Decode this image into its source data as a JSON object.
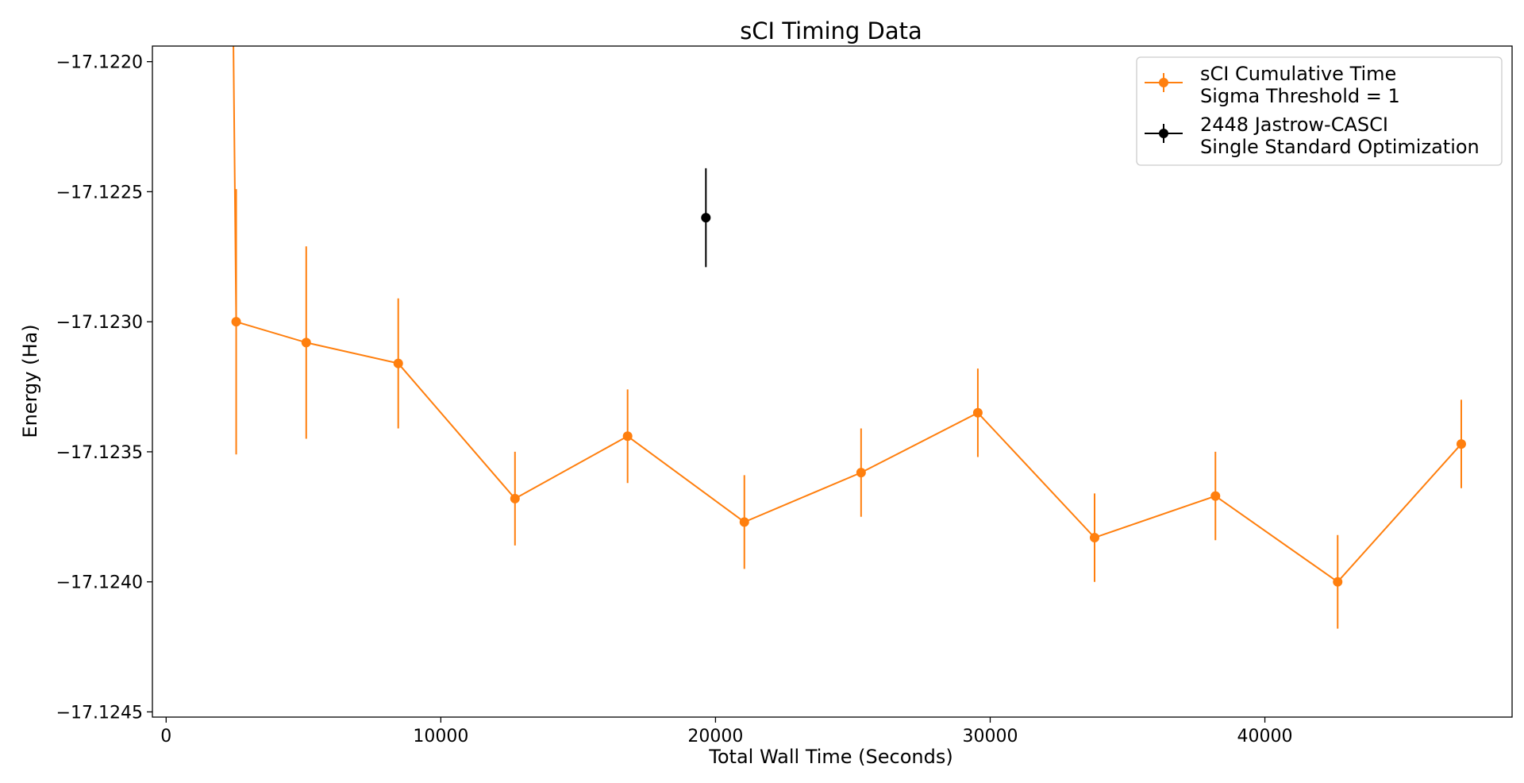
{
  "chart_data": {
    "type": "line",
    "title": "sCI Timing Data",
    "xlabel": "Total Wall Time (Seconds)",
    "ylabel": "Energy (Ha)",
    "xlim": [
      -500,
      49000
    ],
    "ylim": [
      -17.12452,
      -17.12194
    ],
    "xticks": [
      0,
      10000,
      20000,
      30000,
      40000
    ],
    "xtick_labels": [
      "0",
      "10000",
      "20000",
      "30000",
      "40000"
    ],
    "yticks": [
      -17.1245,
      -17.124,
      -17.1235,
      -17.123,
      -17.1225,
      -17.122
    ],
    "ytick_labels": [
      "−17.1245",
      "−17.1240",
      "−17.1235",
      "−17.1230",
      "−17.1225",
      "−17.1220"
    ],
    "grid": false,
    "legend_position": "top-right",
    "series": [
      {
        "name": "sCI Cumulative Time\nSigma Threshold = 1",
        "color": "#ff7f0e",
        "marker": "circle",
        "connected": true,
        "points": [
          {
            "x": 2550,
            "y": -17.123,
            "yerr": 0.00051
          },
          {
            "x": 5100,
            "y": -17.12308,
            "yerr": 0.00037
          },
          {
            "x": 8450,
            "y": -17.12316,
            "yerr": 0.00025
          },
          {
            "x": 12700,
            "y": -17.12368,
            "yerr": 0.00018
          },
          {
            "x": 16800,
            "y": -17.12344,
            "yerr": 0.00018
          },
          {
            "x": 21050,
            "y": -17.12377,
            "yerr": 0.00018
          },
          {
            "x": 25300,
            "y": -17.12358,
            "yerr": 0.00017
          },
          {
            "x": 29550,
            "y": -17.12335,
            "yerr": 0.00017
          },
          {
            "x": 33800,
            "y": -17.12383,
            "yerr": 0.00017
          },
          {
            "x": 38200,
            "y": -17.12367,
            "yerr": 0.00017
          },
          {
            "x": 42650,
            "y": -17.124,
            "yerr": 0.00018
          },
          {
            "x": 47150,
            "y": -17.12347,
            "yerr": 0.00017
          }
        ]
      },
      {
        "name": "2448 Jastrow-CASCI\nSingle Standard Optimization",
        "color": "#000000",
        "marker": "circle",
        "connected": false,
        "points": [
          {
            "x": 19650,
            "y": -17.1226,
            "yerr": 0.00019
          }
        ]
      }
    ],
    "extra_lines": [
      {
        "series": 0,
        "x": [
          2450,
          2550
        ],
        "y": [
          -17.12194,
          -17.123
        ]
      }
    ]
  }
}
